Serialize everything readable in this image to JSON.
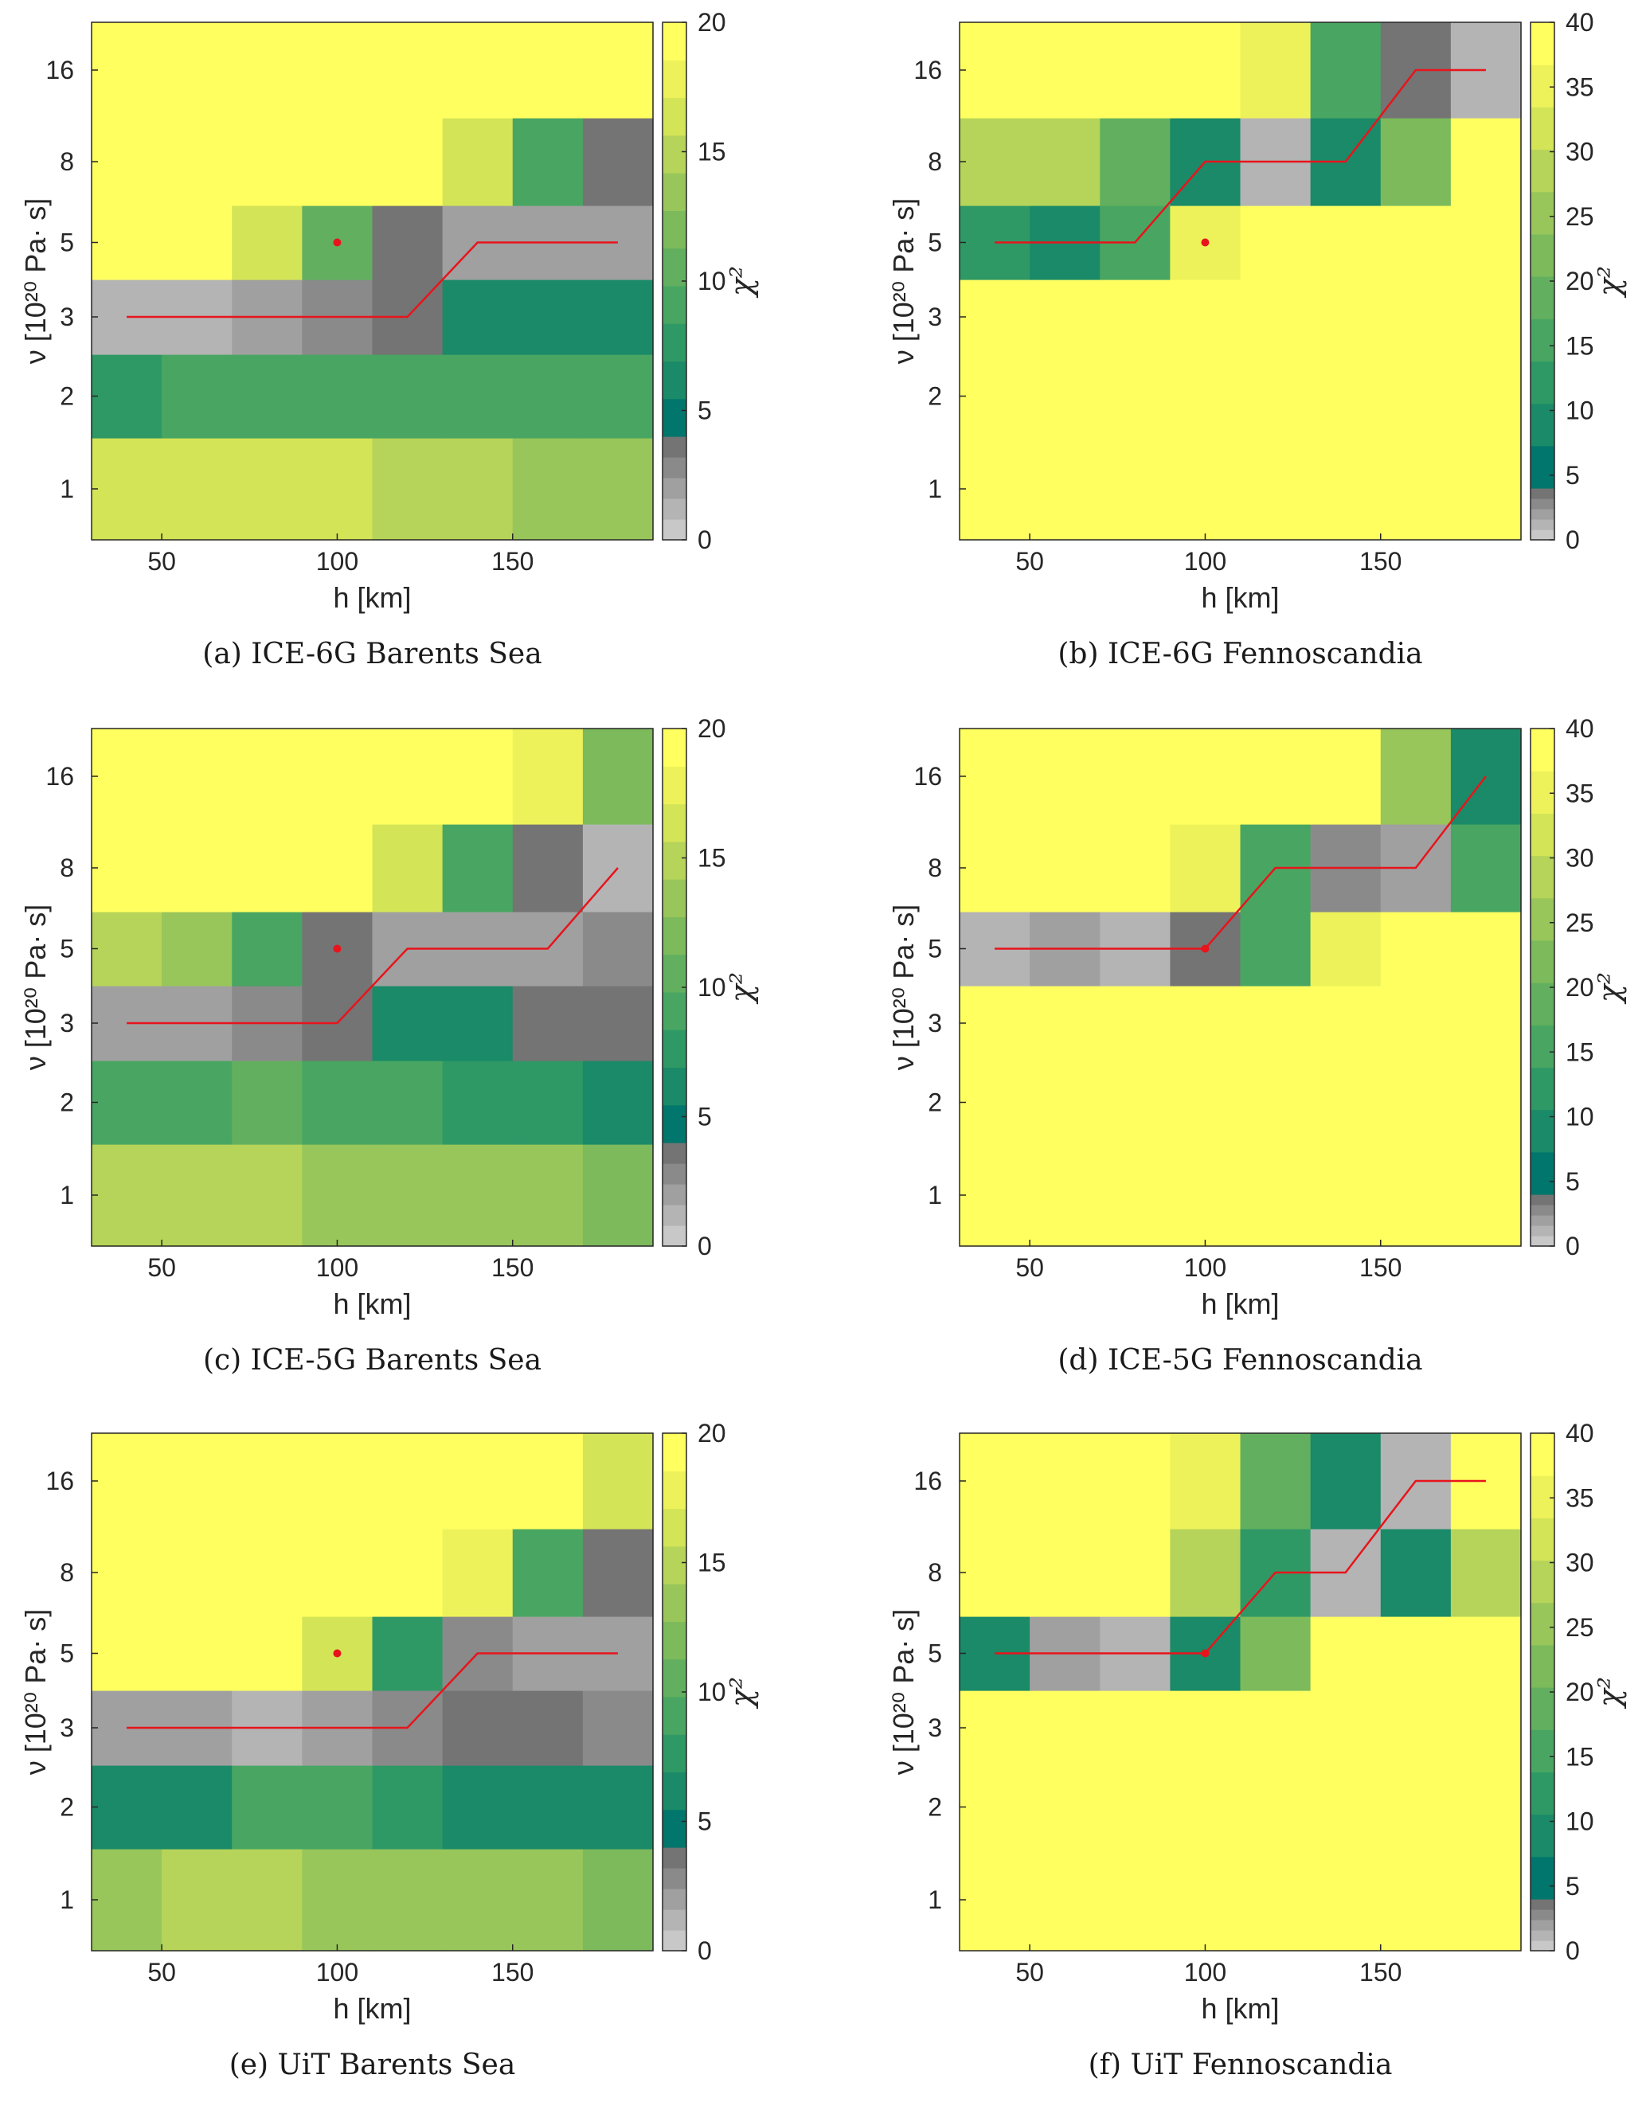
{
  "colors": {
    "line": "#e8141c",
    "axis": "#262626"
  },
  "colormap": {
    "gray": [
      "#c8c8c8",
      "#b4b4b4",
      "#a0a0a0",
      "#8a8a8a",
      "#747474"
    ],
    "main": [
      "#00766c",
      "#1a8a68",
      "#2f9966",
      "#48a662",
      "#62b05f",
      "#7cba5c",
      "#98c65a",
      "#b5d459",
      "#d3e457",
      "#eef25a",
      "#ffff60"
    ]
  },
  "chart_data": [
    {
      "type": "heatmap",
      "caption": "(a) ICE-6G Barents Sea",
      "xlabel": "h  [km]",
      "ylabel": "ν  [10²⁰ Pa· s]",
      "xticks": [
        "50",
        "100",
        "150"
      ],
      "yticks": [
        "1",
        "2",
        "3",
        "5",
        "8",
        "16"
      ],
      "cbar_ticks": [
        "0",
        "5",
        "10",
        "15",
        "20"
      ],
      "clabel": "χ²",
      "vmax": 20,
      "h": [
        40,
        60,
        80,
        100,
        120,
        140,
        160,
        180
      ],
      "nu": [
        1,
        2,
        3,
        5,
        8,
        16
      ],
      "z": [
        [
          16,
          16,
          16,
          16,
          15,
          15,
          14,
          14
        ],
        [
          7,
          8,
          9,
          9,
          9,
          8,
          8,
          8
        ],
        [
          1,
          1,
          2,
          3,
          4,
          5,
          6,
          5
        ],
        [
          20,
          20,
          16,
          11,
          4,
          2,
          2,
          2
        ],
        [
          20,
          20,
          20,
          20,
          20,
          16,
          8,
          4
        ],
        [
          20,
          20,
          20,
          20,
          20,
          20,
          20,
          20
        ]
      ],
      "best_fit_line": {
        "h": [
          40,
          120,
          140,
          180
        ],
        "nu": [
          3,
          3,
          5,
          5
        ]
      },
      "marker": {
        "h": 100,
        "nu": 5
      }
    },
    {
      "type": "heatmap",
      "caption": "(b) ICE-6G Fennoscandia",
      "xlabel": "h  [km]",
      "ylabel": "ν  [10²⁰ Pa· s]",
      "xticks": [
        "50",
        "100",
        "150"
      ],
      "yticks": [
        "1",
        "2",
        "3",
        "5",
        "8",
        "16"
      ],
      "cbar_ticks": [
        "0",
        "5",
        "10",
        "15",
        "20",
        "25",
        "30",
        "35",
        "40"
      ],
      "clabel": "χ²",
      "vmax": 40,
      "h": [
        40,
        60,
        80,
        100,
        120,
        140,
        160,
        180
      ],
      "nu": [
        1,
        2,
        3,
        5,
        8,
        16
      ],
      "z": [
        [
          40,
          40,
          40,
          40,
          40,
          40,
          40,
          40
        ],
        [
          40,
          40,
          40,
          40,
          40,
          40,
          40,
          40
        ],
        [
          40,
          40,
          40,
          40,
          40,
          40,
          40,
          40
        ],
        [
          10,
          9,
          15,
          35,
          40,
          40,
          40,
          40
        ],
        [
          28,
          28,
          17,
          8,
          1,
          6,
          22,
          40
        ],
        [
          40,
          40,
          40,
          40,
          37,
          16,
          4,
          1
        ]
      ],
      "best_fit_line": {
        "h": [
          40,
          80,
          100,
          140,
          160,
          180
        ],
        "nu": [
          5,
          5,
          8,
          8,
          16,
          16
        ]
      },
      "marker": {
        "h": 100,
        "nu": 5
      }
    },
    {
      "type": "heatmap",
      "caption": "(c) ICE-5G Barents Sea",
      "xlabel": "h  [km]",
      "ylabel": "ν  [10²⁰ Pa· s]",
      "xticks": [
        "50",
        "100",
        "150"
      ],
      "yticks": [
        "1",
        "2",
        "3",
        "5",
        "8",
        "16"
      ],
      "cbar_ticks": [
        "0",
        "5",
        "10",
        "15",
        "20"
      ],
      "clabel": "χ²",
      "vmax": 20,
      "h": [
        40,
        60,
        80,
        100,
        120,
        140,
        160,
        180
      ],
      "nu": [
        1,
        2,
        3,
        5,
        8,
        16
      ],
      "z": [
        [
          15,
          15,
          15,
          14,
          14,
          13,
          13,
          12
        ],
        [
          8,
          9,
          10,
          8,
          8,
          7,
          7,
          6
        ],
        [
          2,
          2,
          3,
          4,
          5,
          5,
          4,
          4
        ],
        [
          15,
          13,
          8,
          4,
          2,
          2,
          2,
          3
        ],
        [
          20,
          20,
          20,
          20,
          16,
          9,
          4,
          1
        ],
        [
          20,
          20,
          20,
          20,
          20,
          20,
          18,
          12
        ]
      ],
      "best_fit_line": {
        "h": [
          40,
          100,
          120,
          160,
          180
        ],
        "nu": [
          3,
          3,
          5,
          5,
          8
        ]
      },
      "marker": {
        "h": 100,
        "nu": 5
      }
    },
    {
      "type": "heatmap",
      "caption": "(d) ICE-5G Fennoscandia",
      "xlabel": "h  [km]",
      "ylabel": "ν  [10²⁰ Pa· s]",
      "xticks": [
        "50",
        "100",
        "150"
      ],
      "yticks": [
        "1",
        "2",
        "3",
        "5",
        "8",
        "16"
      ],
      "cbar_ticks": [
        "0",
        "5",
        "10",
        "15",
        "20",
        "25",
        "30",
        "35",
        "40"
      ],
      "clabel": "χ²",
      "vmax": 40,
      "h": [
        40,
        60,
        80,
        100,
        120,
        140,
        160,
        180
      ],
      "nu": [
        1,
        2,
        3,
        5,
        8,
        16
      ],
      "z": [
        [
          40,
          40,
          40,
          40,
          40,
          40,
          40,
          40
        ],
        [
          40,
          40,
          40,
          40,
          40,
          40,
          40,
          40
        ],
        [
          40,
          40,
          40,
          40,
          40,
          40,
          40,
          40
        ],
        [
          1,
          2,
          1,
          4,
          15,
          37,
          40,
          40
        ],
        [
          40,
          40,
          40,
          37,
          15,
          3,
          2,
          14
        ],
        [
          40,
          40,
          40,
          40,
          40,
          40,
          27,
          8
        ]
      ],
      "best_fit_line": {
        "h": [
          40,
          100,
          120,
          160,
          180
        ],
        "nu": [
          5,
          5,
          8,
          8,
          16
        ]
      },
      "marker": {
        "h": 100,
        "nu": 5
      }
    },
    {
      "type": "heatmap",
      "caption": "(e) UiT Barents Sea",
      "xlabel": "h  [km]",
      "ylabel": "ν  [10²⁰ Pa· s]",
      "xticks": [
        "50",
        "100",
        "150"
      ],
      "yticks": [
        "1",
        "2",
        "3",
        "5",
        "8",
        "16"
      ],
      "cbar_ticks": [
        "0",
        "5",
        "10",
        "15",
        "20"
      ],
      "clabel": "χ²",
      "vmax": 20,
      "h": [
        40,
        60,
        80,
        100,
        120,
        140,
        160,
        180
      ],
      "nu": [
        1,
        2,
        3,
        5,
        8,
        16
      ],
      "z": [
        [
          14,
          15,
          15,
          14,
          14,
          13,
          13,
          12
        ],
        [
          5,
          6,
          8,
          8,
          7,
          6,
          6,
          6
        ],
        [
          2,
          2,
          1,
          2,
          3,
          4,
          4,
          3
        ],
        [
          20,
          20,
          20,
          16,
          7,
          3,
          2,
          2
        ],
        [
          20,
          20,
          20,
          20,
          20,
          18,
          9,
          4
        ],
        [
          20,
          20,
          20,
          20,
          20,
          20,
          20,
          16
        ]
      ],
      "best_fit_line": {
        "h": [
          40,
          120,
          140,
          180
        ],
        "nu": [
          3,
          3,
          5,
          5
        ]
      },
      "marker": {
        "h": 100,
        "nu": 5
      }
    },
    {
      "type": "heatmap",
      "caption": "(f) UiT Fennoscandia",
      "xlabel": "h  [km]",
      "ylabel": "ν  [10²⁰ Pa· s]",
      "xticks": [
        "50",
        "100",
        "150"
      ],
      "yticks": [
        "1",
        "2",
        "3",
        "5",
        "8",
        "16"
      ],
      "cbar_ticks": [
        "0",
        "5",
        "10",
        "15",
        "20",
        "25",
        "30",
        "35",
        "40"
      ],
      "clabel": "χ²",
      "vmax": 40,
      "h": [
        40,
        60,
        80,
        100,
        120,
        140,
        160,
        180
      ],
      "nu": [
        1,
        2,
        3,
        5,
        8,
        16
      ],
      "z": [
        [
          40,
          40,
          40,
          40,
          40,
          40,
          40,
          40
        ],
        [
          40,
          40,
          40,
          40,
          40,
          40,
          40,
          40
        ],
        [
          40,
          40,
          40,
          40,
          40,
          40,
          40,
          40
        ],
        [
          6,
          2,
          1,
          6,
          22,
          40,
          40,
          40
        ],
        [
          40,
          40,
          40,
          30,
          10,
          1,
          8,
          28
        ],
        [
          40,
          40,
          40,
          38,
          20,
          7,
          1,
          40
        ]
      ],
      "best_fit_line": {
        "h": [
          40,
          100,
          120,
          140,
          160,
          180
        ],
        "nu": [
          5,
          5,
          8,
          8,
          16,
          16
        ]
      },
      "marker": {
        "h": 100,
        "nu": 5
      }
    }
  ]
}
